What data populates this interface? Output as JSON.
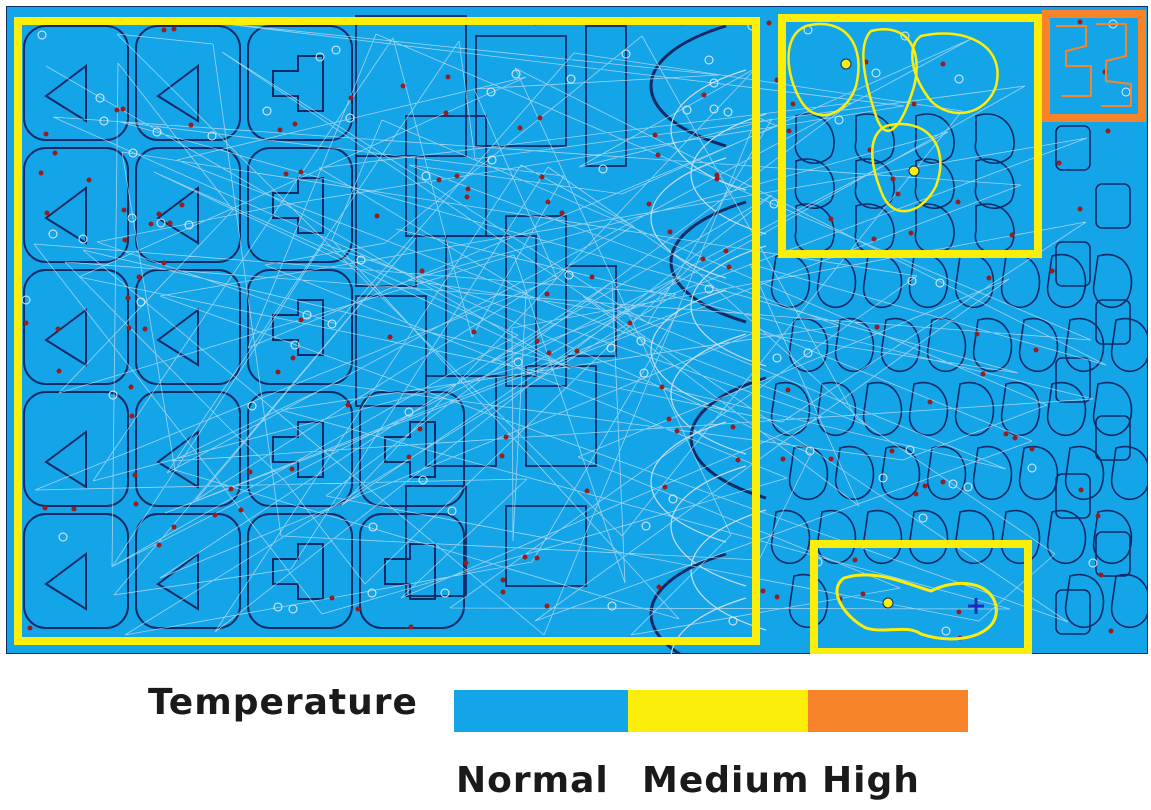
{
  "colors": {
    "sheet": "#14a5e8",
    "outline": "#0d2a66",
    "path": "#dbe7f2",
    "marker": "#9a1c1c",
    "normal": "#14a5e8",
    "medium": "#fbee0a",
    "high": "#f7842a"
  },
  "legend": {
    "title": "Temperature",
    "levels": [
      {
        "label": "Normal",
        "color": "#14a5e8"
      },
      {
        "label": "Medium",
        "color": "#fbee0a"
      },
      {
        "label": "High",
        "color": "#f7842a"
      }
    ]
  },
  "highlights": [
    {
      "name": "highlight-large-left-region",
      "level": "Medium"
    },
    {
      "name": "highlight-upper-right-region",
      "level": "Medium"
    },
    {
      "name": "highlight-bottom-region",
      "level": "Medium"
    },
    {
      "name": "highlight-corner-region",
      "level": "High"
    }
  ]
}
